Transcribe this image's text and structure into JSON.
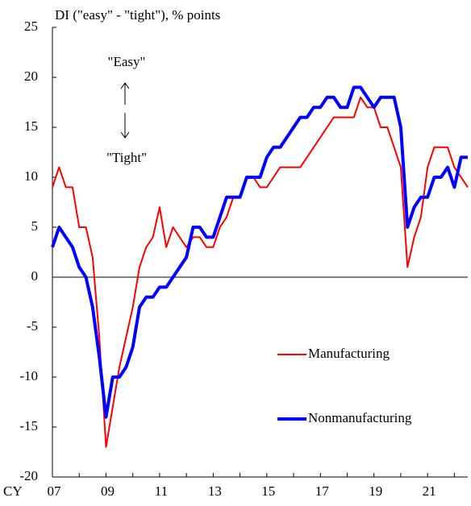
{
  "chart_data": {
    "type": "line",
    "title": "DI (\"easy\"  - \"tight\"),  % points",
    "xlabel": "CY",
    "annotations": [
      "\"Easy\"",
      "\"Tight\""
    ],
    "categories": [
      "07",
      null,
      null,
      null,
      null,
      null,
      null,
      null,
      "09",
      null,
      null,
      null,
      null,
      null,
      null,
      null,
      "11",
      null,
      null,
      null,
      null,
      null,
      null,
      null,
      "13",
      null,
      null,
      null,
      null,
      null,
      null,
      null,
      "15",
      null,
      null,
      null,
      null,
      null,
      null,
      null,
      "17",
      null,
      null,
      null,
      null,
      null,
      null,
      null,
      "19",
      null,
      null,
      null,
      null,
      null,
      null,
      null,
      "21",
      null,
      null,
      null,
      null,
      null,
      null
    ],
    "series": [
      {
        "name": "Manufacturing",
        "color": "#ff0000",
        "width": 2,
        "values": [
          9,
          11,
          9,
          9,
          5,
          5,
          2,
          -6,
          -17,
          -13,
          -9,
          -6,
          -3,
          1,
          3,
          4,
          7,
          3,
          5,
          4,
          3,
          4,
          4,
          3,
          3,
          5,
          6,
          8,
          8,
          10,
          10,
          9,
          9,
          10,
          11,
          11,
          11,
          11,
          12,
          13,
          14,
          15,
          16,
          16,
          16,
          16,
          18,
          17,
          17,
          15,
          15,
          13,
          11,
          1,
          4,
          6,
          11,
          13,
          13,
          13,
          11,
          10,
          9
        ]
      },
      {
        "name": "Nonmanufacturing",
        "color": "#0000ff",
        "width": 4,
        "values": [
          3,
          5,
          4,
          3,
          1,
          0,
          -3,
          -8,
          -14,
          -10,
          -10,
          -9,
          -7,
          -3,
          -2,
          -2,
          -1,
          -1,
          0,
          1,
          2,
          5,
          5,
          4,
          4,
          6,
          8,
          8,
          8,
          10,
          10,
          10,
          12,
          13,
          13,
          14,
          15,
          16,
          16,
          17,
          17,
          18,
          18,
          17,
          17,
          19,
          19,
          18,
          17,
          18,
          18,
          18,
          15,
          5,
          7,
          8,
          8,
          10,
          10,
          11,
          9,
          12,
          12
        ]
      }
    ],
    "ylim": [
      -20,
      25
    ],
    "yticks": [
      -20,
      -15,
      -10,
      -5,
      0,
      5,
      10,
      15,
      20,
      25
    ],
    "zero_line": true
  }
}
